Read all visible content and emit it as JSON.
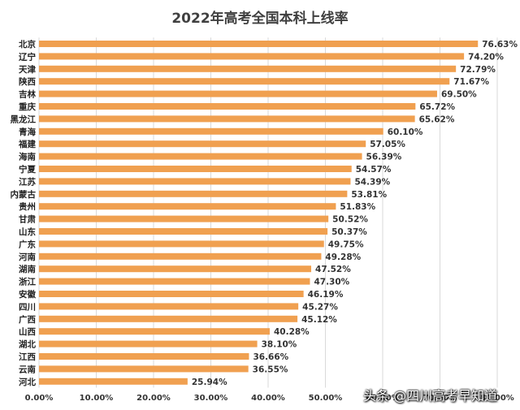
{
  "chart_data": {
    "type": "bar",
    "orientation": "horizontal",
    "title": "2022年高考全国本科上线率",
    "categories": [
      "北京",
      "辽宁",
      "天津",
      "陕西",
      "吉林",
      "重庆",
      "黑龙江",
      "青海",
      "福建",
      "海南",
      "宁夏",
      "江苏",
      "内蒙古",
      "贵州",
      "甘肃",
      "山东",
      "广东",
      "河南",
      "湖南",
      "浙江",
      "安徽",
      "四川",
      "广西",
      "山西",
      "湖北",
      "江西",
      "云南",
      "河北"
    ],
    "values": [
      76.63,
      74.2,
      72.79,
      71.67,
      69.5,
      65.72,
      65.62,
      60.1,
      57.05,
      56.39,
      54.57,
      54.39,
      53.81,
      51.83,
      50.52,
      50.37,
      49.75,
      49.28,
      47.52,
      47.3,
      46.19,
      45.27,
      45.12,
      40.28,
      38.1,
      36.66,
      36.55,
      25.94
    ],
    "value_labels": [
      "76.63%",
      "74.20%",
      "72.79%",
      "71.67%",
      "69.50%",
      "65.72%",
      "65.62%",
      "60.10%",
      "57.05%",
      "56.39%",
      "54.57%",
      "54.39%",
      "53.81%",
      "51.83%",
      "50.52%",
      "50.37%",
      "49.75%",
      "49.28%",
      "47.52%",
      "47.30%",
      "46.19%",
      "45.27%",
      "45.12%",
      "40.28%",
      "38.10%",
      "36.66%",
      "36.55%",
      "25.94%"
    ],
    "xlim": [
      0,
      80
    ],
    "x_ticks": [
      0,
      10,
      20,
      30,
      40,
      50,
      60,
      70,
      80
    ],
    "x_tick_labels": [
      "0.00%",
      "10.00%",
      "20.00%",
      "30.00%",
      "40.00%",
      "50.00%",
      "60.00%",
      "70.00%",
      "80.00%"
    ],
    "grid": "vertical",
    "legend": "none",
    "bar_color": "#F0A050"
  },
  "watermark": "头条 @四川高考早知道"
}
